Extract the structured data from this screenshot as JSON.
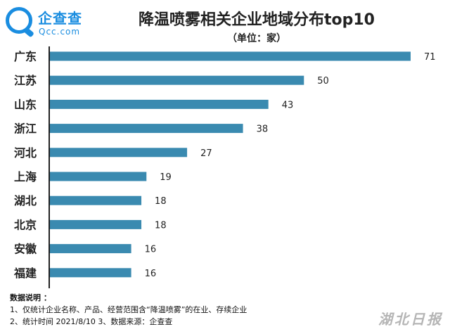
{
  "logo": {
    "cn": "企查查",
    "en": "Qcc.com"
  },
  "watermark": "湖北日报",
  "notes": {
    "heading": "数据说明 ：",
    "line1": "1、仅统计企业名称、产品、经营范围含“降温喷雾”的在业、存续企业",
    "line2": "2、统计时间  2021/8/10        3、数据来源：企查查"
  },
  "colors": {
    "bar": "#3a8ab0",
    "axis": "#222222"
  },
  "chart_data": {
    "type": "bar",
    "orientation": "horizontal",
    "title": "降温喷雾相关企业地域分布top10",
    "subtitle": "（单位：家）",
    "categories": [
      "广东",
      "江苏",
      "山东",
      "浙江",
      "河北",
      "上海",
      "湖北",
      "北京",
      "安徽",
      "福建"
    ],
    "values": [
      71,
      50,
      43,
      38,
      27,
      19,
      18,
      18,
      16,
      16
    ],
    "xlim": [
      0,
      71
    ],
    "grid": false,
    "data_labels": true
  }
}
